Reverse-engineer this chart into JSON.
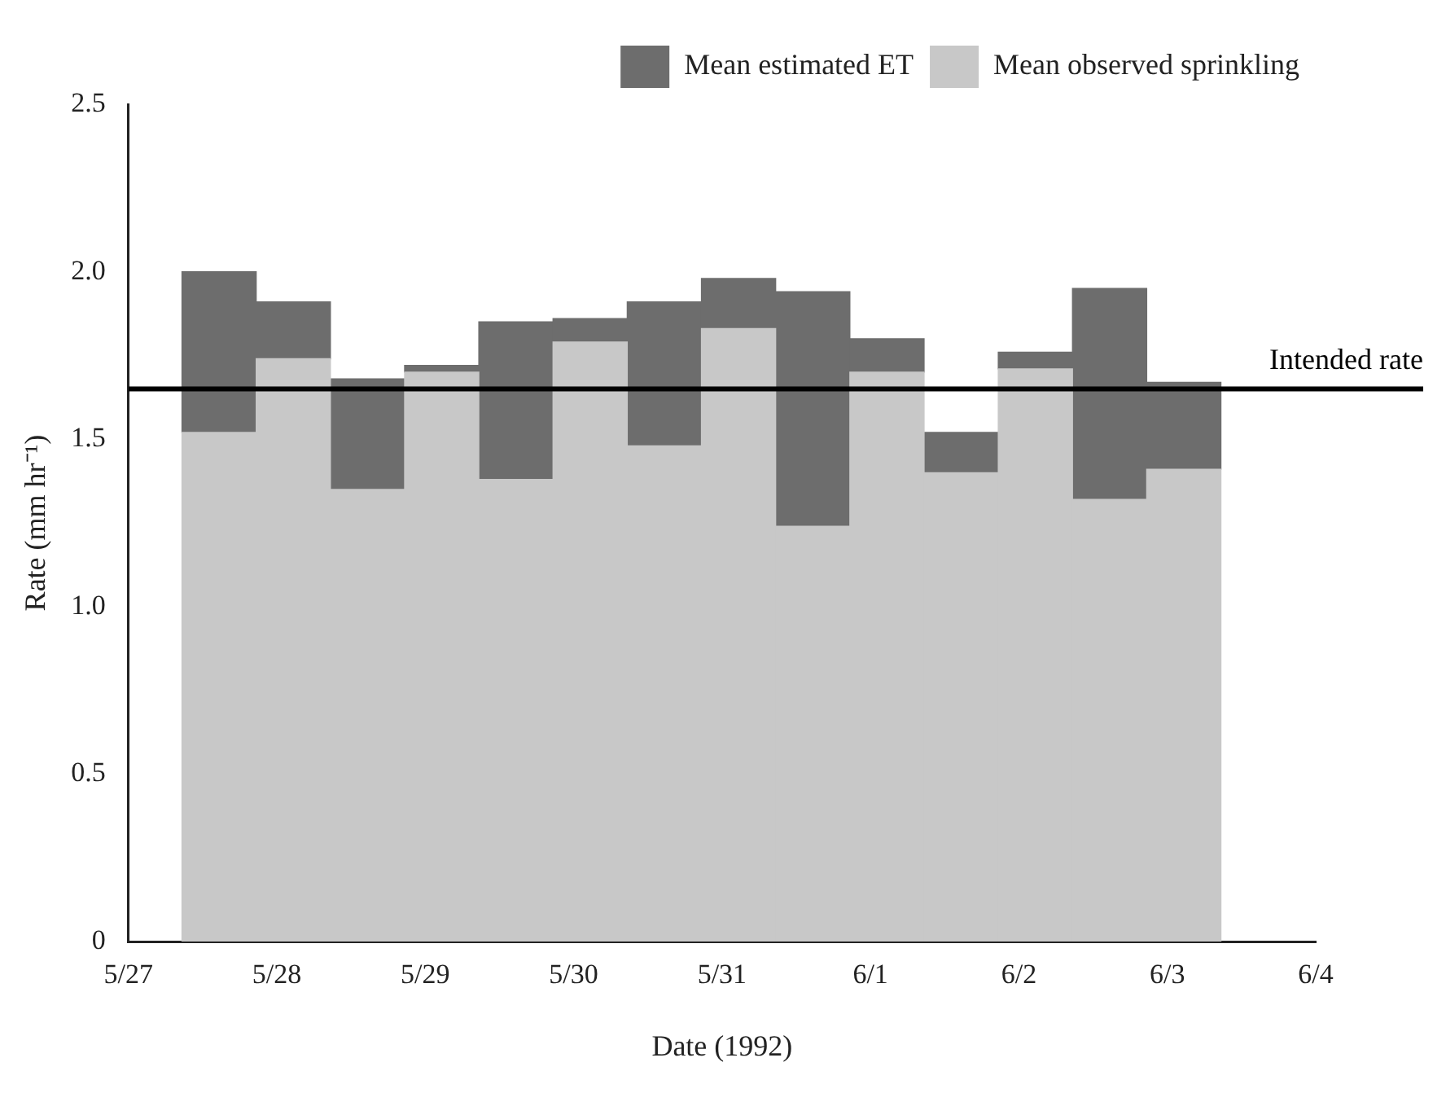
{
  "chart_data": {
    "type": "bar",
    "stacked": true,
    "xlabel": "Date (1992)",
    "ylabel": "Rate (mm hr⁻¹)",
    "x": [
      "1992-05-27T14:40",
      "1992-05-28T02:40",
      "1992-05-28T14:40",
      "1992-05-29T02:40",
      "1992-05-29T14:40",
      "1992-05-30T02:40",
      "1992-05-30T14:40",
      "1992-05-31T02:40",
      "1992-05-31T14:40",
      "1992-06-01T02:40",
      "1992-06-01T14:40",
      "1992-06-02T02:40",
      "1992-06-02T14:40",
      "1992-06-03T02:40"
    ],
    "series": [
      {
        "name": "Mean observed sprinkling",
        "color": "#c8c8c8",
        "values": [
          1.52,
          1.74,
          1.35,
          1.7,
          1.38,
          1.79,
          1.48,
          1.83,
          1.24,
          1.7,
          1.4,
          1.71,
          1.32,
          1.41
        ]
      },
      {
        "name": "Mean estimated ET",
        "color": "#6d6d6d",
        "values": [
          0.48,
          0.17,
          0.33,
          0.02,
          0.47,
          0.07,
          0.43,
          0.15,
          0.7,
          0.1,
          0.12,
          0.05,
          0.63,
          0.26
        ]
      }
    ],
    "xlim": [
      "1992-05-27",
      "1992-06-04"
    ],
    "xticks": [
      {
        "value": "1992-05-27",
        "label": "5/27"
      },
      {
        "value": "1992-05-28",
        "label": "5/28"
      },
      {
        "value": "1992-05-29",
        "label": "5/29"
      },
      {
        "value": "1992-05-30",
        "label": "5/30"
      },
      {
        "value": "1992-05-31",
        "label": "5/31"
      },
      {
        "value": "1992-06-01",
        "label": "6/1"
      },
      {
        "value": "1992-06-02",
        "label": "6/2"
      },
      {
        "value": "1992-06-03",
        "label": "6/3"
      },
      {
        "value": "1992-06-04",
        "label": "6/4"
      }
    ],
    "ylim": [
      0,
      2.5
    ],
    "yticks": [
      0,
      0.5,
      {
        "value": 1,
        "label": "1.0"
      },
      1.5,
      {
        "value": 2,
        "label": "2.0"
      },
      2.5
    ],
    "ref_lines": [
      {
        "axis": "y",
        "value": 1.65,
        "label": "Intended rate",
        "color": "#000000"
      }
    ],
    "legend": "top right",
    "grid": false
  }
}
